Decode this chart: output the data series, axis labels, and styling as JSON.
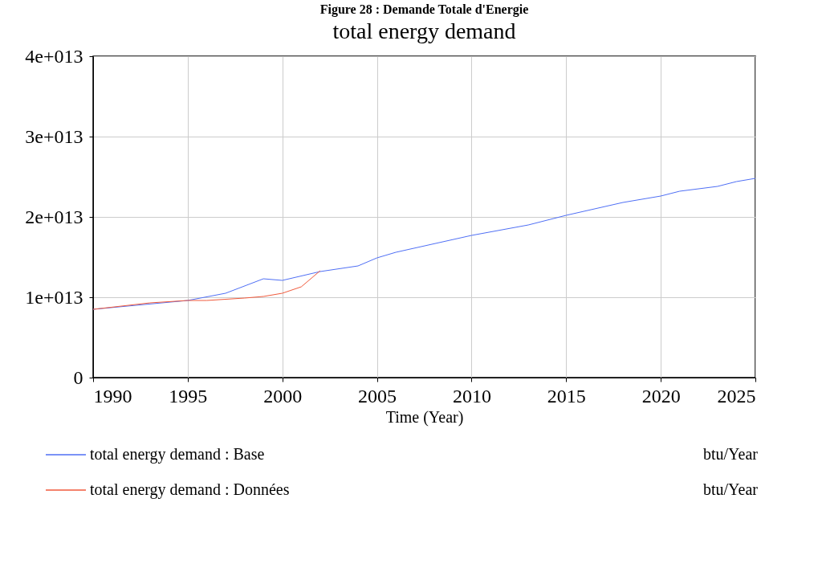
{
  "chart_data": {
    "type": "line",
    "title": "total energy demand",
    "xlabel": "Time (Year)",
    "annotations": [
      "Figure 28 : Demande Totale d'Energie",
      "btu/Year",
      "btu/Year"
    ],
    "xlim": [
      1990,
      2025
    ],
    "xticks": [
      1990,
      1995,
      2000,
      2005,
      2010,
      2015,
      2020,
      2025
    ],
    "ylim": [
      0,
      40000000000000
    ],
    "yticks": [
      {
        "value": 0,
        "label": "0"
      },
      {
        "value": 10000000000000,
        "label": "1e+013"
      },
      {
        "value": 20000000000000,
        "label": "2e+013"
      },
      {
        "value": 30000000000000,
        "label": "3e+013"
      },
      {
        "value": 40000000000000,
        "label": "4e+013"
      }
    ],
    "grid": true,
    "legend": "bottom",
    "line_style": "solid",
    "series": [
      {
        "name": "total energy demand : Base",
        "color": "#4f6ff5",
        "x": [
          1990,
          1995,
          1997,
          1999,
          2000,
          2002,
          2004,
          2005,
          2006,
          2010,
          2013,
          2015,
          2018,
          2020,
          2021,
          2023,
          2024,
          2025
        ],
        "values": [
          8500000000000,
          9600000000000,
          10500000000000,
          12300000000000,
          12100000000000,
          13200000000000,
          13900000000000,
          14900000000000,
          15600000000000,
          17700000000000,
          19000000000000,
          20200000000000,
          21800000000000,
          22600000000000,
          23200000000000,
          23800000000000,
          24400000000000,
          24800000000000
        ]
      },
      {
        "name": "total energy demand : Données",
        "color": "#f05a3c",
        "x": [
          1990,
          1993,
          1995,
          1996,
          1998,
          1999,
          2000,
          2001,
          2002
        ],
        "values": [
          8500000000000,
          9300000000000,
          9600000000000,
          9600000000000,
          9900000000000,
          10100000000000,
          10500000000000,
          11300000000000,
          13300000000000
        ]
      }
    ]
  }
}
